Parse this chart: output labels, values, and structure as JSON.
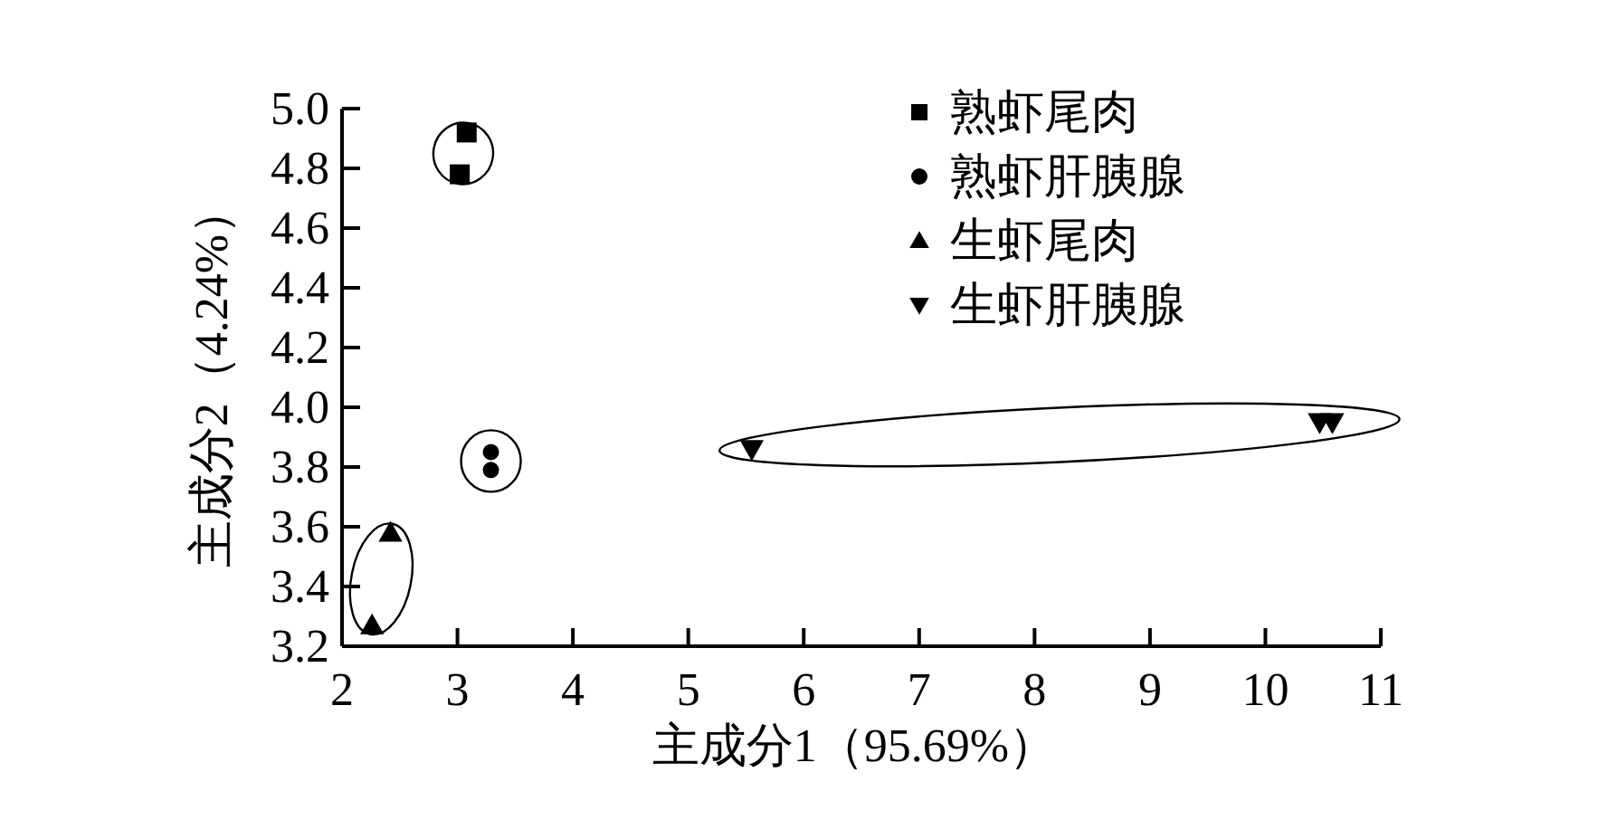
{
  "chart_data": {
    "type": "scatter",
    "xlabel": "主成分1（95.69%）",
    "ylabel": "主成分2（4.24%）",
    "xlim": [
      2,
      11
    ],
    "xticks": [
      2,
      3,
      4,
      5,
      6,
      7,
      8,
      9,
      10,
      11
    ],
    "ylim": [
      3.2,
      5.0
    ],
    "yticks": [
      3.2,
      3.4,
      3.6,
      3.8,
      {
        "value": 4,
        "label": "4.0"
      },
      4.2,
      4.4,
      4.6,
      4.8,
      {
        "value": 5,
        "label": "5.0"
      }
    ],
    "legend": "top right",
    "series": [
      {
        "name": "熟虾尾肉",
        "color": "#000000",
        "marker": "square",
        "x": [
          3.08,
          3.02
        ],
        "values": [
          4.92,
          4.78
        ]
      },
      {
        "name": "熟虾肝胰腺",
        "color": "#000000",
        "marker": "circle",
        "x": [
          3.29,
          3.29
        ],
        "values": [
          3.85,
          3.79
        ]
      },
      {
        "name": "生虾尾肉",
        "color": "#000000",
        "marker": "triangle",
        "x": [
          2.26,
          2.42
        ],
        "values": [
          3.27,
          3.58
        ]
      },
      {
        "name": "生虾肝胰腺",
        "color": "#000000",
        "marker": "triangle-down",
        "x": [
          5.55,
          10.47,
          10.58
        ],
        "values": [
          3.86,
          3.95,
          3.95
        ]
      }
    ]
  }
}
